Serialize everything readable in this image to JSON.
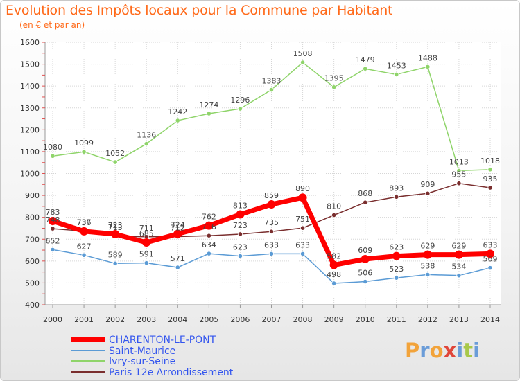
{
  "header": {
    "title": "Evolution des Impôts locaux pour la Commune par Habitant",
    "subtitle": "(en € et par an)"
  },
  "logo": {
    "text": "Proxiti"
  },
  "colors": {
    "title": "#ff6a1a",
    "legend_text": "#3355ee"
  },
  "chart_data": {
    "type": "line",
    "title": "Evolution des Impôts locaux pour la Commune par Habitant",
    "subtitle": "(en € et par an)",
    "x": [
      2000,
      2001,
      2002,
      2003,
      2004,
      2005,
      2006,
      2007,
      2008,
      2009,
      2010,
      2011,
      2012,
      2013,
      2014
    ],
    "ylim": [
      400,
      1600
    ],
    "yticks": [
      400,
      500,
      600,
      700,
      800,
      900,
      1000,
      1100,
      1200,
      1300,
      1400,
      1500,
      1600
    ],
    "grid": true,
    "legend_position": "bottom-left",
    "series": [
      {
        "name": "CHARENTON-LE-PONT",
        "color": "#ff0000",
        "values": [
          783,
          736,
          723,
          685,
          724,
          762,
          813,
          859,
          890,
          582,
          609,
          623,
          629,
          629,
          633
        ]
      },
      {
        "name": "Saint-Maurice",
        "color": "#5b9bd5",
        "values": [
          652,
          627,
          589,
          591,
          571,
          634,
          623,
          633,
          633,
          498,
          506,
          523,
          538,
          534,
          569
        ]
      },
      {
        "name": "Ivry-sur-Seine",
        "color": "#8fd46a",
        "values": [
          1080,
          1099,
          1052,
          1136,
          1242,
          1274,
          1296,
          1383,
          1508,
          1395,
          1479,
          1453,
          1488,
          1013,
          1018
        ]
      },
      {
        "name": "Paris 12e  Arrondissement",
        "color": "#7a2e2e",
        "values": [
          748,
          737,
          713,
          711,
          712,
          716,
          723,
          735,
          751,
          810,
          868,
          893,
          909,
          955,
          935
        ]
      }
    ]
  }
}
